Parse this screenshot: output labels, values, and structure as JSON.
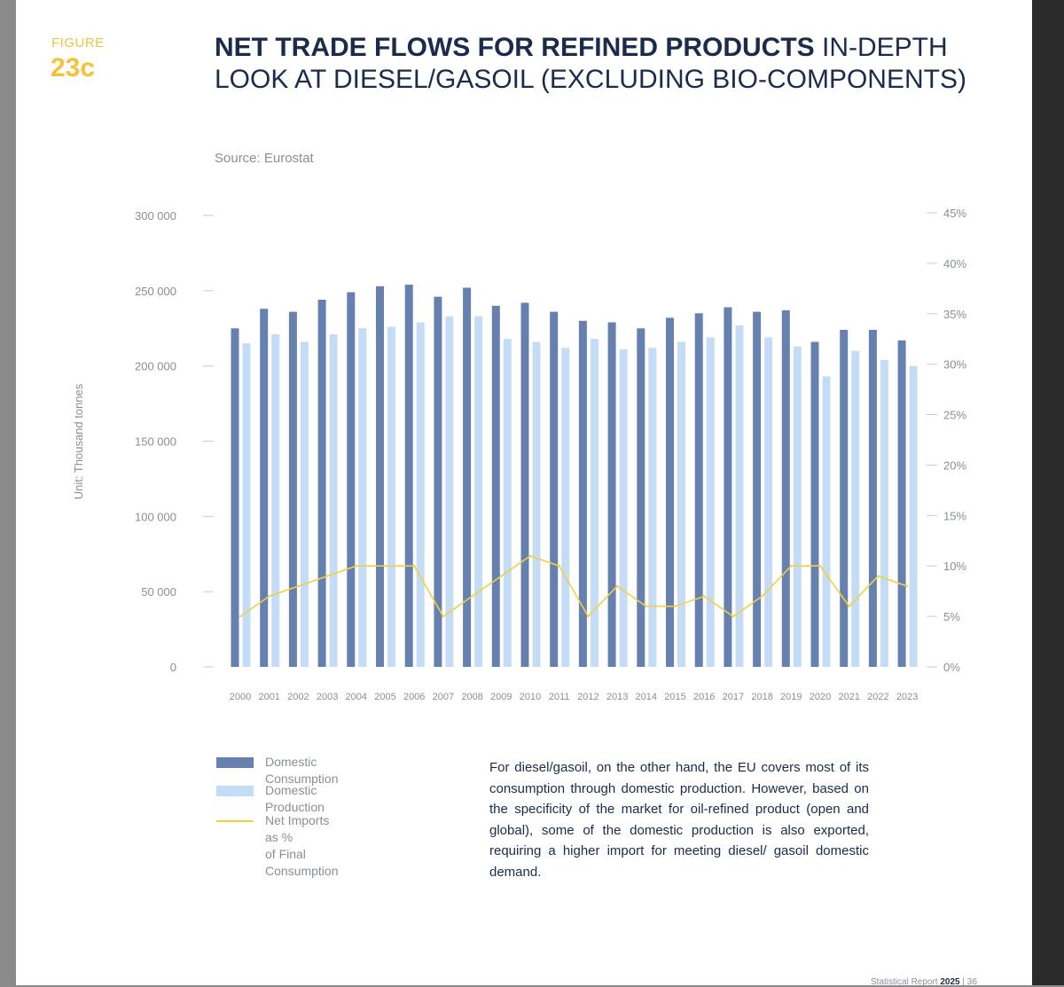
{
  "figure": {
    "label": "FIGURE",
    "number": "23c"
  },
  "title": {
    "bold": "NET TRADE FLOWS FOR REFINED PRODUCTS",
    "rest": " IN-DEPTH LOOK AT DIESEL/GASOIL (EXCLUDING BIO-COMPONENTS)"
  },
  "source": "Source: Eurostat",
  "chart_data": {
    "type": "bar",
    "ylabel": "Unit: Thousand tonnes",
    "ylim": [
      0,
      300000
    ],
    "y_ticks": [
      "300 000",
      "250 000",
      "200 000",
      "150 000",
      "100 000",
      "50 000",
      "0"
    ],
    "y2lim": [
      0,
      45
    ],
    "y2_ticks": [
      "45%",
      "40%",
      "35%",
      "30%",
      "25%",
      "20%",
      "15%",
      "10%",
      "5%",
      "0%"
    ],
    "categories": [
      "2000",
      "2001",
      "2002",
      "2003",
      "2004",
      "2005",
      "2006",
      "2007",
      "2008",
      "2009",
      "2010",
      "2011",
      "2012",
      "2013",
      "2014",
      "2015",
      "2016",
      "2017",
      "2018",
      "2019",
      "2020",
      "2021",
      "2022",
      "2023"
    ],
    "series": [
      {
        "name": "Domestic Consumption",
        "color": "#6681b0",
        "axis": "left",
        "values": [
          225000,
          238000,
          236000,
          244000,
          249000,
          253000,
          254000,
          246000,
          252000,
          240000,
          242000,
          236000,
          230000,
          229000,
          225000,
          232000,
          235000,
          239000,
          236000,
          237000,
          216000,
          224000,
          224000,
          217000
        ]
      },
      {
        "name": "Domestic Production",
        "color": "#c5dcf7",
        "axis": "left",
        "values": [
          215000,
          221000,
          216000,
          221000,
          225000,
          226000,
          229000,
          233000,
          233000,
          218000,
          216000,
          212000,
          218000,
          211000,
          212000,
          216000,
          219000,
          227000,
          219000,
          213000,
          193000,
          210000,
          204000,
          200000
        ]
      },
      {
        "name": "Net Imports as %\nof Final Consumption",
        "color": "#f2d040",
        "axis": "right",
        "type": "line",
        "values": [
          5,
          7,
          8,
          9,
          10,
          10,
          10,
          5,
          7,
          9,
          11,
          10,
          5,
          8,
          6,
          6,
          7,
          5,
          7,
          10,
          10,
          6,
          9,
          8
        ]
      }
    ]
  },
  "legend": {
    "consumption": "Domestic Consumption",
    "production": "Domestic Production",
    "net_imports": "Net Imports as %\nof Final Consumption"
  },
  "body_text": "For diesel/gasoil, on the other hand, the EU covers most of its consumption through domestic production. However, based on the specificity of the market for oil-refined product (open and global), some of the domestic production is also exported, requiring a higher import for meeting diesel/ gasoil domestic demand.",
  "footer": {
    "text": "Statistical Report ",
    "year": "2025",
    "page": " | 36"
  }
}
